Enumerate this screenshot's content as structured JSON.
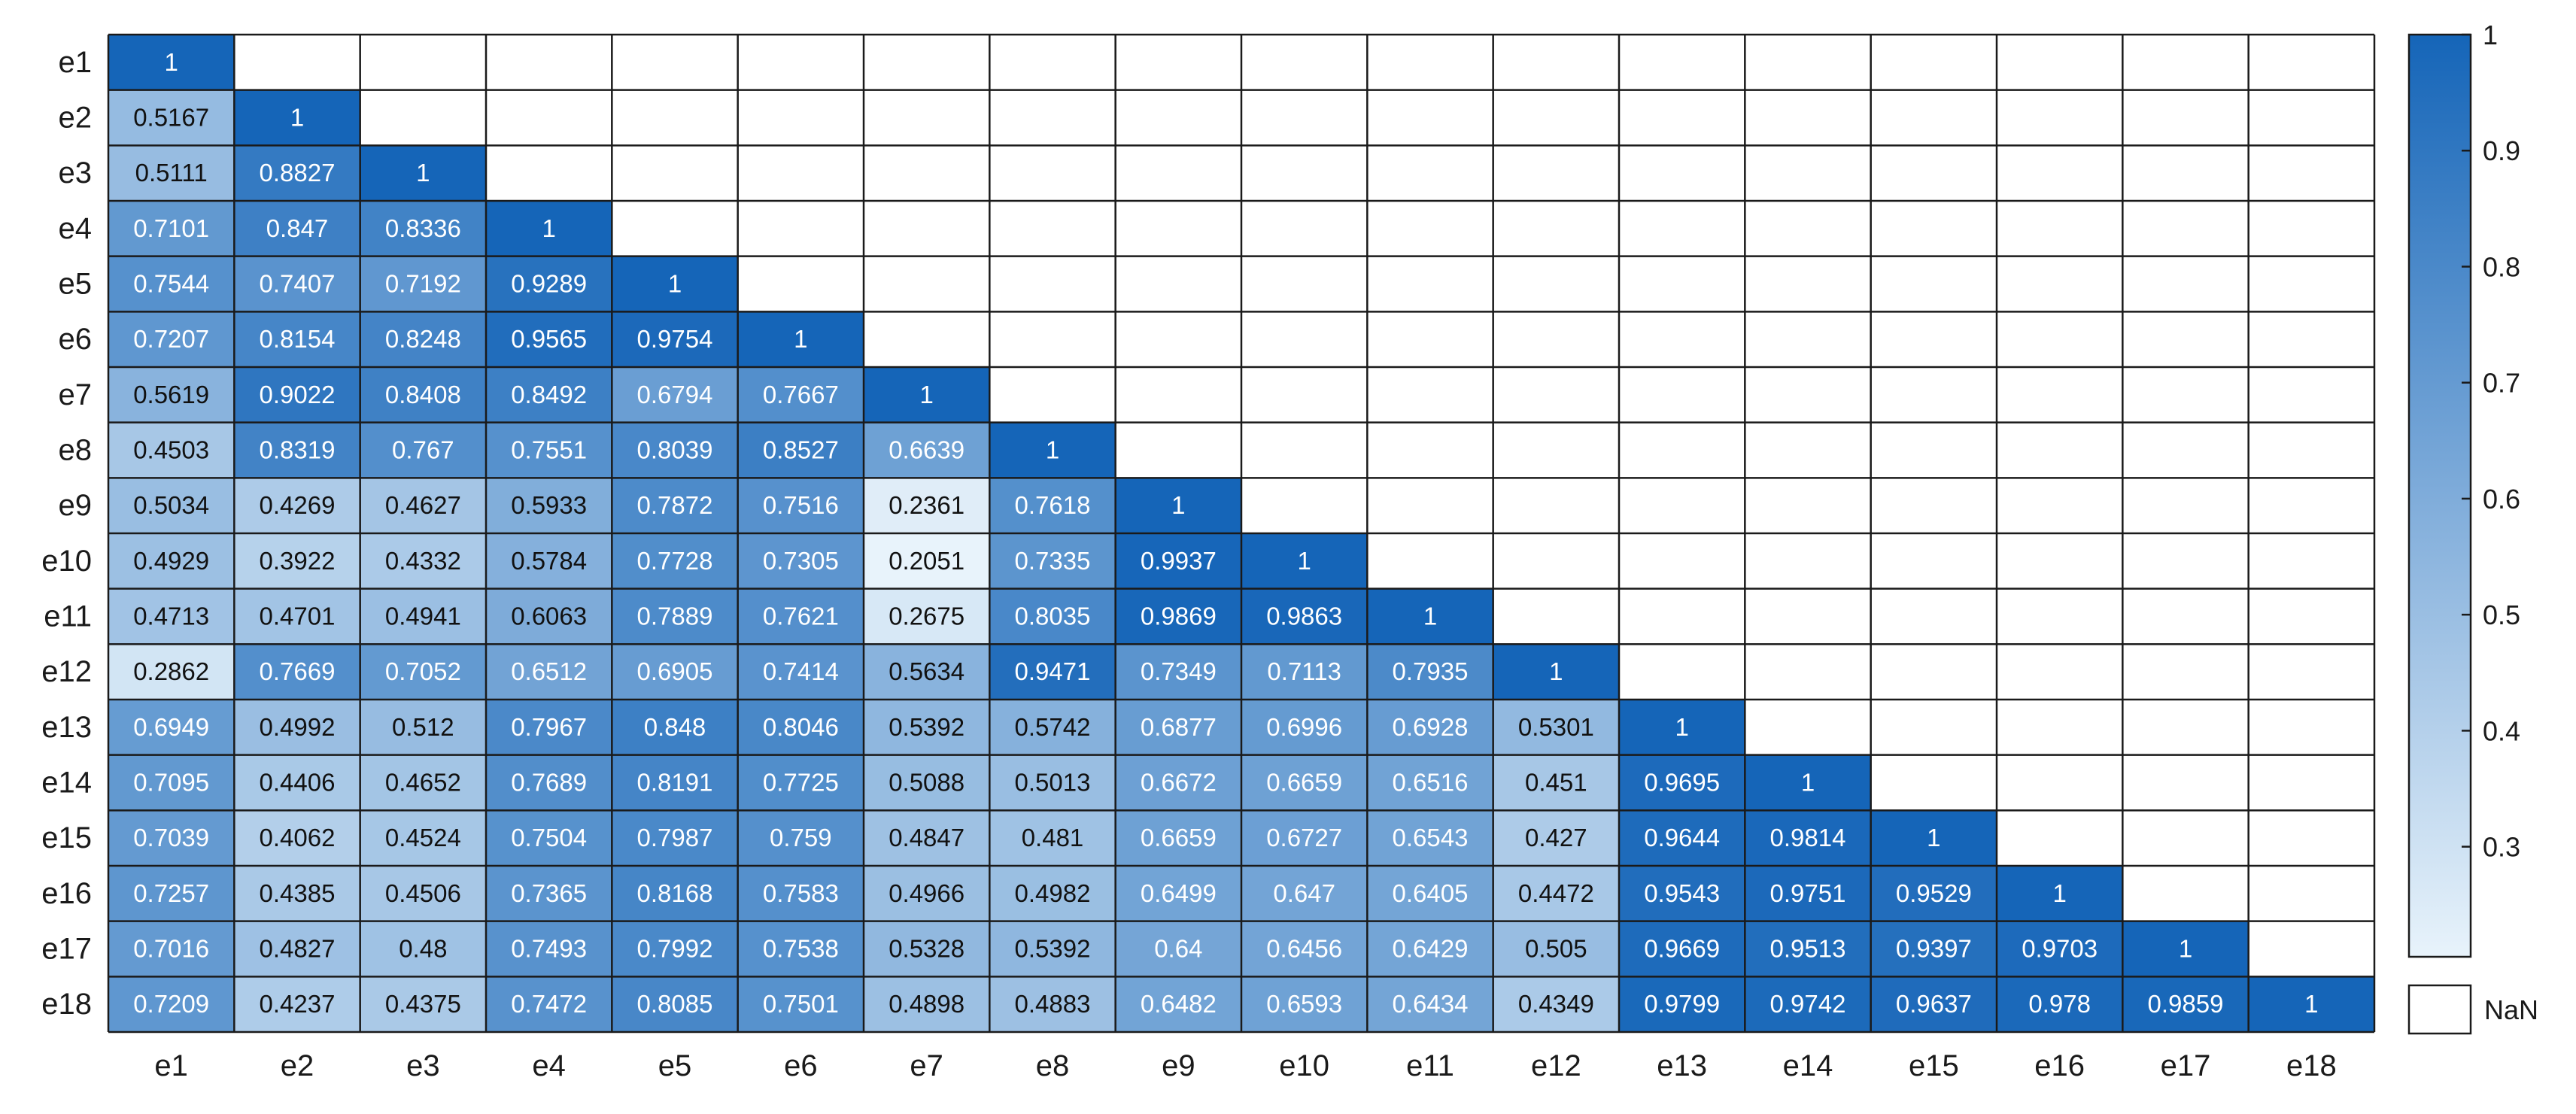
{
  "chart_data": {
    "type": "heatmap",
    "title": "",
    "xlabel": "",
    "ylabel": "",
    "row_labels": [
      "e1",
      "e2",
      "e3",
      "e4",
      "e5",
      "e6",
      "e7",
      "e8",
      "e9",
      "e10",
      "e11",
      "e12",
      "e13",
      "e14",
      "e15",
      "e16",
      "e17",
      "e18"
    ],
    "col_labels": [
      "e1",
      "e2",
      "e3",
      "e4",
      "e5",
      "e6",
      "e7",
      "e8",
      "e9",
      "e10",
      "e11",
      "e12",
      "e13",
      "e14",
      "e15",
      "e16",
      "e17",
      "e18"
    ],
    "values": [
      [
        1
      ],
      [
        0.5167,
        1
      ],
      [
        0.5111,
        0.8827,
        1
      ],
      [
        0.7101,
        0.847,
        0.8336,
        1
      ],
      [
        0.7544,
        0.7407,
        0.7192,
        0.9289,
        1
      ],
      [
        0.7207,
        0.8154,
        0.8248,
        0.9565,
        0.9754,
        1
      ],
      [
        0.5619,
        0.9022,
        0.8408,
        0.8492,
        0.6794,
        0.7667,
        1
      ],
      [
        0.4503,
        0.8319,
        0.767,
        0.7551,
        0.8039,
        0.8527,
        0.6639,
        1
      ],
      [
        0.5034,
        0.4269,
        0.4627,
        0.5933,
        0.7872,
        0.7516,
        0.2361,
        0.7618,
        1
      ],
      [
        0.4929,
        0.3922,
        0.4332,
        0.5784,
        0.7728,
        0.7305,
        0.2051,
        0.7335,
        0.9937,
        1
      ],
      [
        0.4713,
        0.4701,
        0.4941,
        0.6063,
        0.7889,
        0.7621,
        0.2675,
        0.8035,
        0.9869,
        0.9863,
        1
      ],
      [
        0.2862,
        0.7669,
        0.7052,
        0.6512,
        0.6905,
        0.7414,
        0.5634,
        0.9471,
        0.7349,
        0.7113,
        0.7935,
        1
      ],
      [
        0.6949,
        0.4992,
        0.512,
        0.7967,
        0.848,
        0.8046,
        0.5392,
        0.5742,
        0.6877,
        0.6996,
        0.6928,
        0.5301,
        1
      ],
      [
        0.7095,
        0.4406,
        0.4652,
        0.7689,
        0.8191,
        0.7725,
        0.5088,
        0.5013,
        0.6672,
        0.6659,
        0.6516,
        0.451,
        0.9695,
        1
      ],
      [
        0.7039,
        0.4062,
        0.4524,
        0.7504,
        0.7987,
        0.759,
        0.4847,
        0.481,
        0.6659,
        0.6727,
        0.6543,
        0.427,
        0.9644,
        0.9814,
        1
      ],
      [
        0.7257,
        0.4385,
        0.4506,
        0.7365,
        0.8168,
        0.7583,
        0.4966,
        0.4982,
        0.6499,
        0.647,
        0.6405,
        0.4472,
        0.9543,
        0.9751,
        0.9529,
        1
      ],
      [
        0.7016,
        0.4827,
        0.48,
        0.7493,
        0.7992,
        0.7538,
        0.5328,
        0.5392,
        0.64,
        0.6456,
        0.6429,
        0.505,
        0.9669,
        0.9513,
        0.9397,
        0.9703,
        1
      ],
      [
        0.7209,
        0.4237,
        0.4375,
        0.7472,
        0.8085,
        0.7501,
        0.4898,
        0.4883,
        0.6482,
        0.6593,
        0.6434,
        0.4349,
        0.9799,
        0.9742,
        0.9637,
        0.978,
        0.9859,
        1
      ]
    ],
    "colorbar": {
      "ticks": [
        "0.3",
        "0.4",
        "0.5",
        "0.6",
        "0.7",
        "0.8",
        "0.9",
        "1"
      ],
      "range": [
        0.2051,
        1
      ],
      "low_color": "#e8f3fb",
      "high_color": "#1565b8",
      "nan_label": "NaN"
    }
  }
}
